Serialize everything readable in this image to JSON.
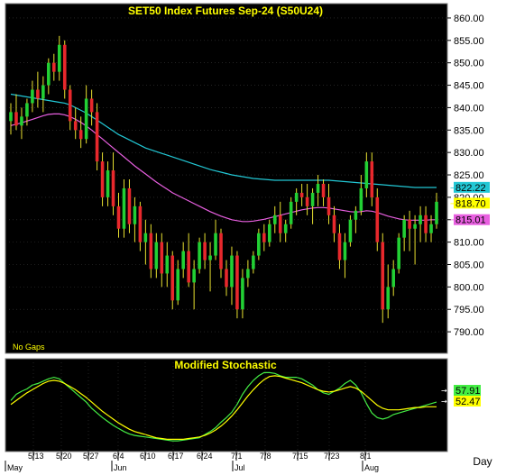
{
  "chart_data": [
    {
      "type": "candlestick",
      "title": "SET50  Index  Futures  Sep-24  (S50U24)",
      "note": "No Gaps",
      "ylim": [
        786,
        862
      ],
      "yticks": [
        860,
        855,
        850,
        845,
        840,
        835,
        830,
        825,
        820,
        815,
        810,
        805,
        800,
        795,
        790
      ],
      "xticks": [
        "5/13",
        "5/20",
        "5/27",
        "6/4",
        "6/10",
        "6/17",
        "6/24",
        "7/1",
        "7/8",
        "7/15",
        "7/23",
        "8/1"
      ],
      "months": [
        "May",
        "Jun",
        "Jul",
        "Aug"
      ],
      "price_labels": [
        {
          "value": "822.22",
          "color": "#22c7d4"
        },
        {
          "value": "818.70",
          "color": "#ffff00"
        },
        {
          "value": "815.01",
          "color": "#e85fe0"
        }
      ],
      "ohlc": [
        [
          837,
          841,
          834,
          839
        ],
        [
          839,
          843,
          835,
          836
        ],
        [
          836,
          840,
          833,
          838
        ],
        [
          838,
          842,
          836,
          841
        ],
        [
          841,
          846,
          839,
          844
        ],
        [
          844,
          848,
          840,
          842
        ],
        [
          842,
          847,
          839,
          845
        ],
        [
          845,
          851,
          843,
          850
        ],
        [
          850,
          852,
          846,
          848
        ],
        [
          848,
          856,
          846,
          854
        ],
        [
          854,
          855,
          842,
          844
        ],
        [
          844,
          845,
          835,
          837
        ],
        [
          837,
          840,
          833,
          835
        ],
        [
          835,
          838,
          831,
          833
        ],
        [
          833,
          845,
          832,
          842
        ],
        [
          842,
          844,
          836,
          839
        ],
        [
          839,
          841,
          826,
          828
        ],
        [
          828,
          830,
          818,
          820
        ],
        [
          820,
          828,
          818,
          826
        ],
        [
          826,
          830,
          816,
          818
        ],
        [
          818,
          821,
          811,
          813
        ],
        [
          813,
          824,
          811,
          822
        ],
        [
          822,
          824,
          812,
          814
        ],
        [
          814,
          820,
          810,
          818
        ],
        [
          818,
          819,
          808,
          810
        ],
        [
          810,
          815,
          805,
          812
        ],
        [
          812,
          814,
          802,
          804
        ],
        [
          804,
          812,
          802,
          810
        ],
        [
          810,
          812,
          800,
          803
        ],
        [
          803,
          810,
          800,
          807
        ],
        [
          807,
          808,
          795,
          797
        ],
        [
          797,
          806,
          796,
          804
        ],
        [
          804,
          810,
          802,
          808
        ],
        [
          808,
          812,
          800,
          801
        ],
        [
          801,
          806,
          795,
          804
        ],
        [
          804,
          811,
          803,
          810
        ],
        [
          810,
          812,
          804,
          806
        ],
        [
          806,
          810,
          799,
          807
        ],
        [
          807,
          815,
          806,
          812
        ],
        [
          812,
          813,
          802,
          804
        ],
        [
          804,
          806,
          798,
          800
        ],
        [
          800,
          809,
          796,
          807
        ],
        [
          807,
          808,
          793,
          795
        ],
        [
          795,
          804,
          793,
          802
        ],
        [
          802,
          806,
          800,
          804
        ],
        [
          804,
          808,
          803,
          807
        ],
        [
          807,
          813,
          806,
          812
        ],
        [
          812,
          814,
          808,
          810
        ],
        [
          810,
          815,
          809,
          814
        ],
        [
          814,
          818,
          812,
          816
        ],
        [
          816,
          819,
          810,
          812
        ],
        [
          812,
          815,
          810,
          814
        ],
        [
          814,
          820,
          813,
          819
        ],
        [
          819,
          822,
          816,
          821
        ],
        [
          821,
          823,
          818,
          820
        ],
        [
          820,
          823,
          816,
          818
        ],
        [
          818,
          822,
          814,
          821
        ],
        [
          821,
          825,
          818,
          823
        ],
        [
          823,
          824,
          818,
          820
        ],
        [
          820,
          823,
          814,
          816
        ],
        [
          816,
          818,
          810,
          812
        ],
        [
          812,
          814,
          804,
          806
        ],
        [
          806,
          812,
          802,
          810
        ],
        [
          810,
          816,
          809,
          815
        ],
        [
          815,
          818,
          812,
          817
        ],
        [
          817,
          825,
          816,
          822
        ],
        [
          822,
          830,
          820,
          828
        ],
        [
          828,
          830,
          818,
          820
        ],
        [
          820,
          822,
          808,
          810
        ],
        [
          810,
          812,
          792,
          795
        ],
        [
          795,
          805,
          793,
          800
        ],
        [
          800,
          806,
          798,
          804
        ],
        [
          804,
          812,
          803,
          811
        ],
        [
          811,
          816,
          808,
          815
        ],
        [
          815,
          817,
          808,
          813
        ],
        [
          813,
          816,
          805,
          814
        ],
        [
          814,
          818,
          810,
          816
        ],
        [
          816,
          818,
          810,
          812
        ],
        [
          812,
          816,
          810,
          814
        ],
        [
          814,
          821,
          813,
          819
        ]
      ],
      "ma_cyan": [
        843,
        842.8,
        842.6,
        842.4,
        842.2,
        842.0,
        841.8,
        841.6,
        841.4,
        841.2,
        841.0,
        840.6,
        840.0,
        839.4,
        838.8,
        838.0,
        837.2,
        836.4,
        835.6,
        834.8,
        834.0,
        833.4,
        832.8,
        832.2,
        831.6,
        831.0,
        830.6,
        830.2,
        829.8,
        829.4,
        829.0,
        828.6,
        828.2,
        827.8,
        827.4,
        827.0,
        826.6,
        826.2,
        825.9,
        825.6,
        825.3,
        825.0,
        824.8,
        824.6,
        824.4,
        824.2,
        824.1,
        824.0,
        823.9,
        823.8,
        823.8,
        823.8,
        823.8,
        823.8,
        823.8,
        823.8,
        823.8,
        823.8,
        823.8,
        823.8,
        823.7,
        823.6,
        823.5,
        823.4,
        823.3,
        823.2,
        823.1,
        823.0,
        822.9,
        822.8,
        822.7,
        822.6,
        822.5,
        822.4,
        822.3,
        822.2,
        822.2,
        822.2,
        822.2,
        822.2
      ],
      "ma_magenta": [
        836,
        836.3,
        836.6,
        837.0,
        837.4,
        837.8,
        838.2,
        838.5,
        838.6,
        838.6,
        838.4,
        838.0,
        837.4,
        836.7,
        835.9,
        835.0,
        834.0,
        833.0,
        832.0,
        831.0,
        830.0,
        829.0,
        828.0,
        827.0,
        826.1,
        825.2,
        824.3,
        823.4,
        822.6,
        821.8,
        821.0,
        820.4,
        819.8,
        819.2,
        818.6,
        818.0,
        817.4,
        816.8,
        816.3,
        815.8,
        815.4,
        815.0,
        814.8,
        814.6,
        814.6,
        814.7,
        814.9,
        815.1,
        815.4,
        815.7,
        816.0,
        816.3,
        816.6,
        816.9,
        817.2,
        817.4,
        817.6,
        817.7,
        817.7,
        817.6,
        817.4,
        817.2,
        817.0,
        816.8,
        816.7,
        816.8,
        817.0,
        816.9,
        816.6,
        816.2,
        815.8,
        815.5,
        815.2,
        815.0,
        814.9,
        814.9,
        814.9,
        814.9,
        815.0,
        815.0
      ]
    },
    {
      "type": "line",
      "title": "Modified  Stochastic",
      "ylim": [
        0,
        100
      ],
      "value_labels": [
        {
          "value": "57.91",
          "color": "#44ee44"
        },
        {
          "value": "52.47",
          "color": "#ffff00"
        }
      ],
      "series": [
        {
          "color": "#44ee44",
          "values": [
            60,
            68,
            72,
            75,
            80,
            82,
            85,
            88,
            90,
            88,
            82,
            76,
            70,
            64,
            58,
            50,
            44,
            38,
            33,
            28,
            24,
            20,
            17,
            15,
            14,
            13,
            12,
            11,
            10,
            9,
            8,
            8,
            9,
            10,
            11,
            12,
            16,
            20,
            25,
            32,
            38,
            45,
            55,
            68,
            78,
            86,
            92,
            96,
            96,
            95,
            92,
            90,
            90,
            90,
            88,
            84,
            80,
            74,
            70,
            68,
            72,
            76,
            82,
            86,
            80,
            70,
            56,
            44,
            38,
            36,
            38,
            42,
            44,
            46,
            48,
            50,
            52,
            54,
            56,
            58
          ]
        },
        {
          "color": "#ffff00",
          "values": [
            55,
            60,
            65,
            70,
            74,
            78,
            82,
            85,
            86,
            85,
            82,
            78,
            74,
            69,
            64,
            58,
            52,
            46,
            41,
            36,
            31,
            27,
            23,
            20,
            18,
            16,
            14,
            12,
            11,
            10,
            10,
            10,
            10,
            11,
            12,
            13,
            15,
            18,
            22,
            27,
            33,
            40,
            48,
            57,
            66,
            74,
            81,
            87,
            91,
            92,
            91,
            89,
            87,
            85,
            83,
            80,
            77,
            74,
            72,
            71,
            72,
            74,
            76,
            78,
            76,
            72,
            66,
            60,
            54,
            50,
            48,
            48,
            48,
            49,
            50,
            51,
            51,
            52,
            52,
            52
          ]
        }
      ]
    }
  ],
  "x_axis_label": "Day",
  "colors": {
    "background": "#000000",
    "frame": "#ffffff",
    "up": "#22d034",
    "down": "#e8282c",
    "wick": "#e8e030",
    "title": "#ffff00",
    "grid": "#3a3a3a"
  }
}
